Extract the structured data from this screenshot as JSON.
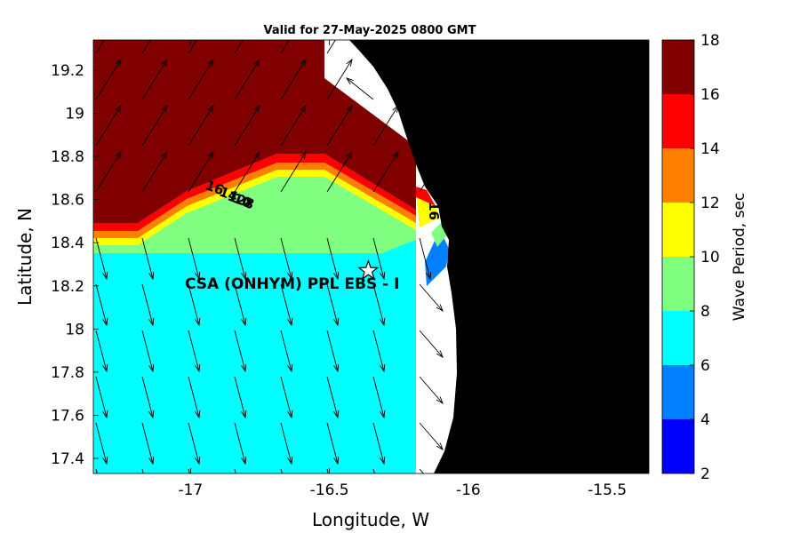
{
  "map": {
    "title": "Valid for 27-May-2025 0800 GMT",
    "xlabel": "Longitude, W",
    "ylabel": "Latitude, N",
    "xlim": [
      -17.35,
      -15.35
    ],
    "ylim": [
      17.33,
      19.34
    ],
    "x_ticks": [
      -17,
      -16.5,
      -16,
      -15.5
    ],
    "x_tick_labels": [
      "-17",
      "-16.5",
      "-16",
      "-15.5"
    ],
    "y_ticks": [
      17.4,
      17.6,
      17.8,
      18,
      18.2,
      18.4,
      18.6,
      18.8,
      19,
      19.2
    ],
    "y_tick_labels": [
      "17.4",
      "17.6",
      "17.8",
      "18",
      "18.2",
      "18.4",
      "18.6",
      "18.8",
      "19",
      "19.2"
    ],
    "station": {
      "label": "CSA (ONHYM) PPL EBS - I",
      "lon": -16.36,
      "lat": 18.27
    },
    "contour_labels": [
      {
        "text": "16",
        "lon": -16.95,
        "lat": 18.65
      },
      {
        "text": "14",
        "lon": -16.9,
        "lat": 18.62
      },
      {
        "text": "12",
        "lon": -16.87,
        "lat": 18.6
      },
      {
        "text": "10",
        "lon": -16.85,
        "lat": 18.59
      },
      {
        "text": "8",
        "lon": -16.81,
        "lat": 18.57
      },
      {
        "text": "16",
        "lon": -16.14,
        "lat": 18.59
      }
    ],
    "colorbar": {
      "label": "Wave Period, sec",
      "ticks": [
        2,
        4,
        6,
        8,
        10,
        12,
        14,
        16,
        18
      ],
      "colors": [
        "#0000ff",
        "#0080ff",
        "#00ffff",
        "#80ff80",
        "#ffff00",
        "#ff8000",
        "#ff0000",
        "#800000"
      ]
    },
    "colors": {
      "land": "#000000",
      "no_data": "#ffffff",
      "arrow": "#000000"
    }
  }
}
